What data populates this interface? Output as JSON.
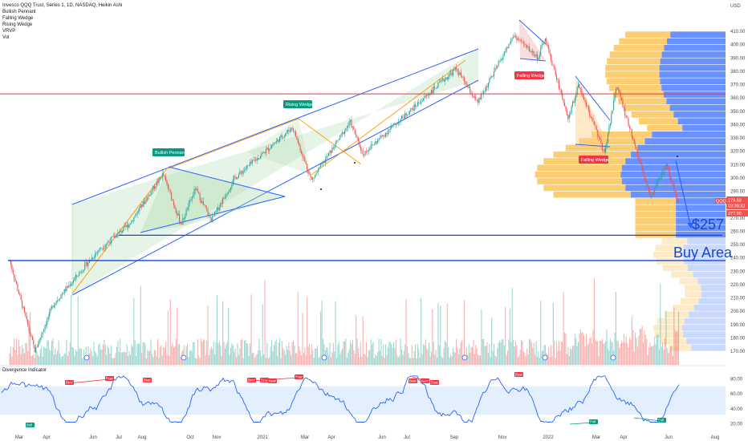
{
  "header": {
    "symbol_line": "Invesco QQQ Trust, Series 1, 1D, NASDAQ, Heikin Ashi",
    "indicators": [
      "Bullish Pennant",
      "Falling Wedge",
      "Rising Wedge",
      "VRVP",
      "Vol"
    ]
  },
  "price_axis": {
    "currency": "USD",
    "ticks": [
      "410.00",
      "400.00",
      "390.00",
      "380.00",
      "370.00",
      "360.00",
      "350.00",
      "340.00",
      "330.00",
      "320.00",
      "310.00",
      "300.00",
      "290.00",
      "280.00",
      "270.00",
      "260.00",
      "250.00",
      "240.00",
      "230.00",
      "220.00",
      "210.00",
      "200.00",
      "190.00",
      "180.00",
      "170.00"
    ],
    "tags": {
      "symbol": "QQQ",
      "last_price": "279.83",
      "countdown": "03:39:32",
      "second_price": "277.90"
    }
  },
  "oscillator_axis": {
    "ticks": [
      "80.00",
      "60.00",
      "40.00",
      "20.00"
    ]
  },
  "time_axis": {
    "labels": [
      "Mar",
      "Apr",
      "Jun",
      "Jul",
      "Aug",
      "Oct",
      "Nov",
      "2021",
      "Mar",
      "Apr",
      "Jun",
      "Jul",
      "Sep",
      "Nov",
      "2022",
      "Mar",
      "Apr",
      "Jun",
      "Aug"
    ]
  },
  "oscillator_panel": {
    "title": "Divergence Indicator",
    "bear_label": "Bear",
    "bull_label": "Bull"
  },
  "annotations": {
    "bullish_pennant": "Bullish Pennant",
    "rising_wedge": "Rising Wedge",
    "falling_wedge_1": "Falling Wedge",
    "falling_wedge_2": "Falling Wedge",
    "target": "$257",
    "buy_area": "Buy Area"
  },
  "colors": {
    "bull": "#26a69a",
    "bear": "#ef5350",
    "trendline": "#2962ff",
    "horizontal_red": "#f23645",
    "wedge_fill": "#c8e6c9",
    "vrvp_up": "#2962ff",
    "vrvp_down": "#f7a600",
    "oscillator_line": "#2962ff",
    "oscillator_band": "#d1e4fb"
  },
  "chart_data": {
    "type": "candlestick",
    "title": "Invesco QQQ Trust, Series 1, 1D, NASDAQ, Heikin Ashi",
    "ylim": [
      165,
      415
    ],
    "close_path": [
      {
        "t": "2020-02-20",
        "y": 238
      },
      {
        "t": "2020-03-23",
        "y": 170
      },
      {
        "t": "2020-04-15",
        "y": 205
      },
      {
        "t": "2020-06-10",
        "y": 245
      },
      {
        "t": "2020-07-20",
        "y": 265
      },
      {
        "t": "2020-09-01",
        "y": 303
      },
      {
        "t": "2020-09-24",
        "y": 265
      },
      {
        "t": "2020-10-12",
        "y": 292
      },
      {
        "t": "2020-11-01",
        "y": 268
      },
      {
        "t": "2020-12-01",
        "y": 300
      },
      {
        "t": "2021-02-12",
        "y": 338
      },
      {
        "t": "2021-03-08",
        "y": 298
      },
      {
        "t": "2021-04-26",
        "y": 342
      },
      {
        "t": "2021-05-12",
        "y": 318
      },
      {
        "t": "2021-09-07",
        "y": 382
      },
      {
        "t": "2021-10-04",
        "y": 356
      },
      {
        "t": "2021-11-19",
        "y": 407
      },
      {
        "t": "2021-12-20",
        "y": 390
      },
      {
        "t": "2021-12-28",
        "y": 405
      },
      {
        "t": "2022-01-27",
        "y": 345
      },
      {
        "t": "2022-02-09",
        "y": 370
      },
      {
        "t": "2022-03-14",
        "y": 318
      },
      {
        "t": "2022-03-29",
        "y": 370
      },
      {
        "t": "2022-05-11",
        "y": 285
      },
      {
        "t": "2022-05-31",
        "y": 310
      },
      {
        "t": "2022-06-16",
        "y": 279.83
      }
    ],
    "levels": {
      "red_resistance": 363,
      "target": 257,
      "buy_area": 238
    },
    "oscillator": {
      "ylim": [
        10,
        90
      ],
      "band": [
        32,
        70
      ]
    }
  }
}
